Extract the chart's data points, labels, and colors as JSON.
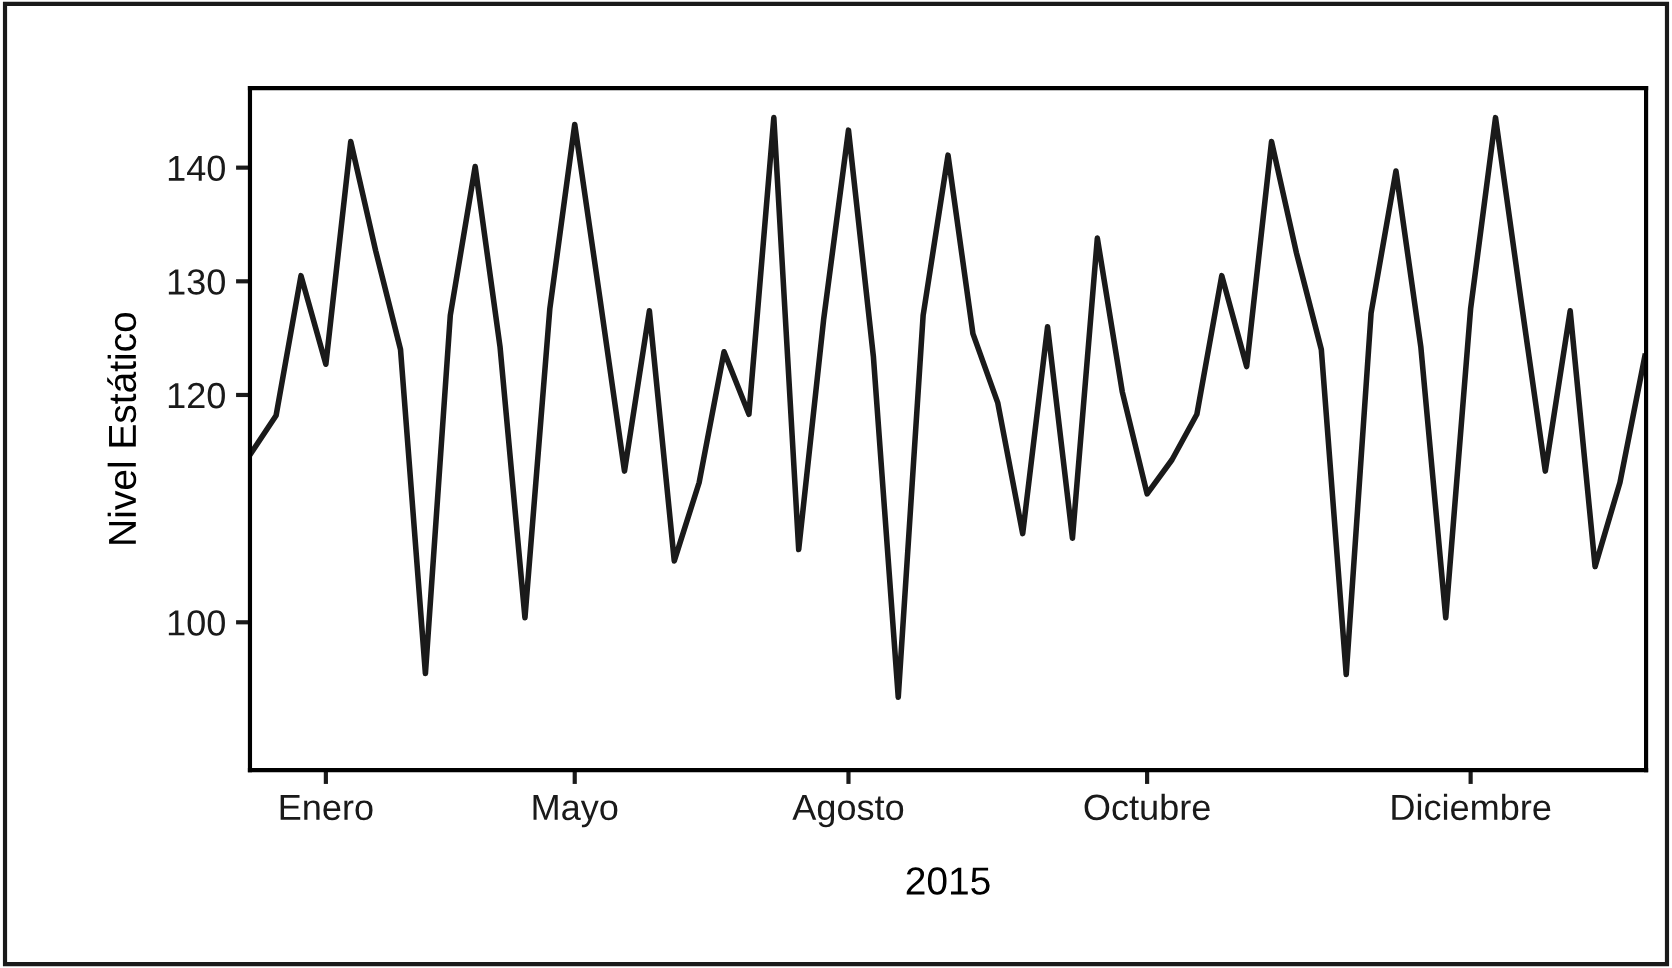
{
  "chart_data": {
    "type": "line",
    "xlabel": "2015",
    "ylabel": "Nivel Estático",
    "categories": [
      null,
      null,
      null,
      "Enero",
      null,
      null,
      null,
      null,
      null,
      null,
      null,
      null,
      null,
      "Mayo",
      null,
      null,
      null,
      null,
      null,
      null,
      null,
      null,
      null,
      null,
      "Agosto",
      null,
      null,
      null,
      null,
      null,
      null,
      null,
      null,
      null,
      null,
      null,
      "Octubre",
      null,
      null,
      null,
      null,
      null,
      null,
      null,
      null,
      null,
      null,
      null,
      null,
      "Diciembre",
      null,
      null,
      null,
      null,
      null,
      null,
      null
    ],
    "series": [
      {
        "color": "#1a1a1a",
        "values": [
          114.9,
          118.2,
          130.5,
          122.7,
          142.3,
          132.7,
          124.0,
          95.5,
          127.0,
          140.1,
          124.2,
          100.4,
          127.6,
          143.8,
          128.7,
          113.3,
          127.4,
          105.4,
          112.3,
          123.8,
          118.3,
          144.4,
          106.4,
          126.6,
          143.3,
          123.4,
          93.4,
          127.0,
          141.1,
          125.4,
          119.3,
          107.8,
          126.0,
          107.4,
          133.8,
          120.3,
          111.3,
          114.3,
          118.3,
          130.5,
          122.5,
          142.3,
          132.5,
          124.0,
          95.4,
          127.2,
          139.7,
          124.2,
          100.4,
          127.6,
          144.4,
          128.7,
          113.3,
          127.4,
          104.9,
          112.3,
          123.4
        ]
      }
    ],
    "ylim": [
      87,
      147
    ],
    "yticks": [
      100,
      120,
      130,
      140
    ],
    "grid": false,
    "legend": false,
    "marker": "none",
    "line_style": "solid"
  }
}
